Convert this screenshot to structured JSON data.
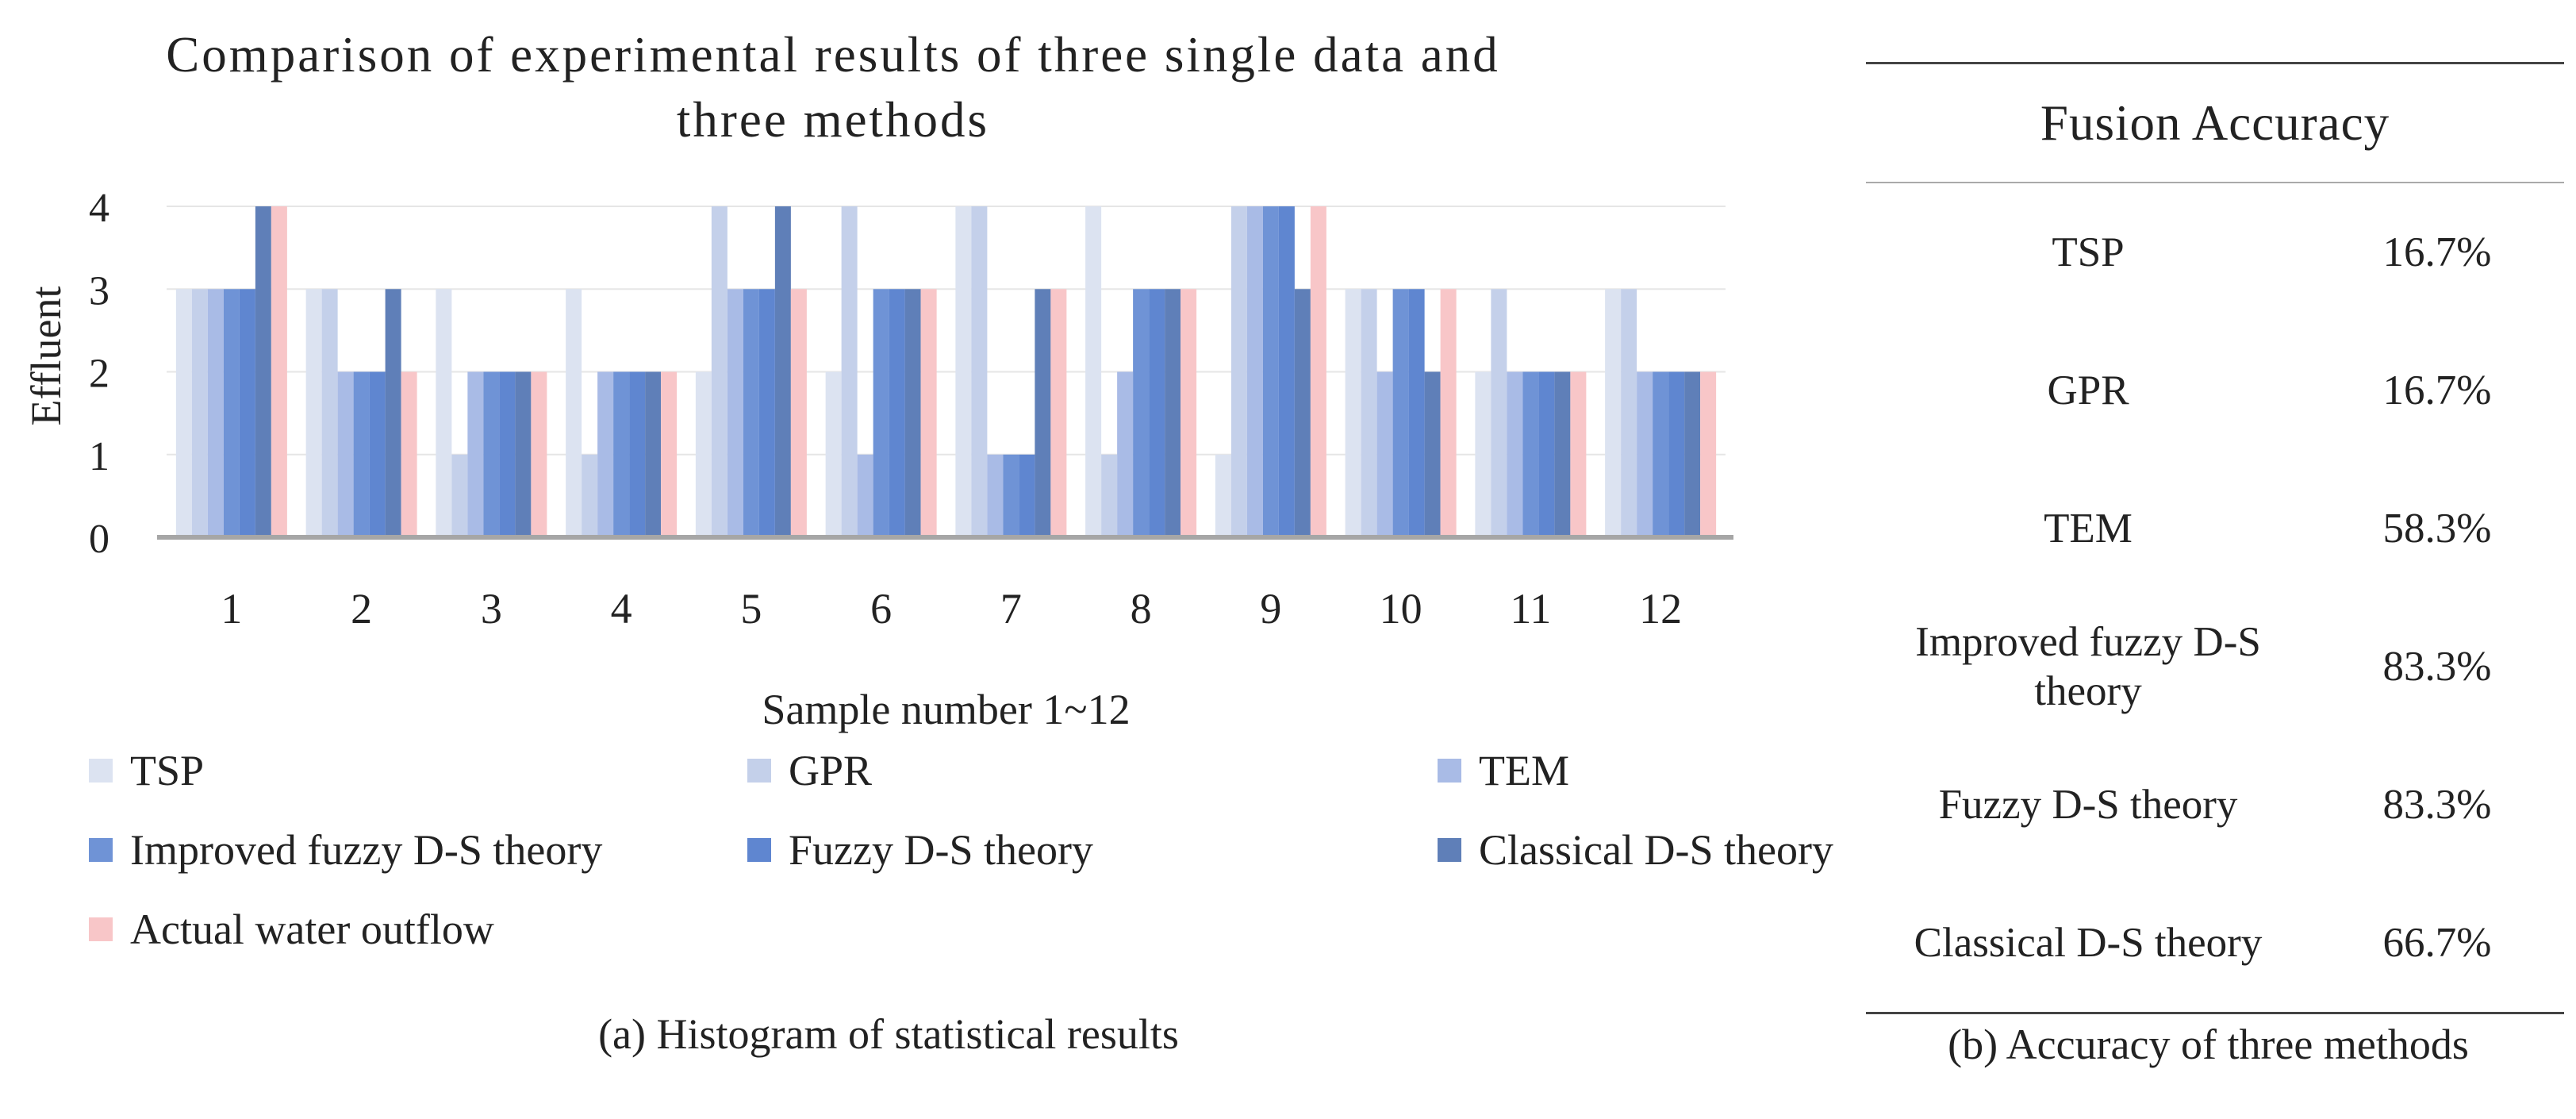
{
  "chart_data": {
    "type": "bar",
    "title": "Comparison of experimental results of three single data and three methods",
    "title_lines": [
      "Comparison of experimental results of three single data and",
      "three methods"
    ],
    "xlabel": "Sample number 1~12",
    "ylabel": "Effluent",
    "ylim": [
      0,
      4
    ],
    "yticks": [
      "0",
      "1",
      "2",
      "3",
      "4"
    ],
    "grid": true,
    "legend_position": "bottom",
    "categories": [
      "1",
      "2",
      "3",
      "4",
      "5",
      "6",
      "7",
      "8",
      "9",
      "10",
      "11",
      "12"
    ],
    "series": [
      {
        "name": "TSP",
        "color": "#DCE3F1",
        "values": [
          3,
          3,
          3,
          3,
          2,
          2,
          4,
          4,
          1,
          3,
          2,
          3
        ]
      },
      {
        "name": "GPR",
        "color": "#C4D0EA",
        "values": [
          3,
          3,
          1,
          1,
          4,
          4,
          4,
          1,
          4,
          3,
          3,
          3
        ]
      },
      {
        "name": "TEM",
        "color": "#A9BBE6",
        "values": [
          3,
          2,
          2,
          2,
          3,
          1,
          1,
          2,
          4,
          2,
          2,
          2
        ]
      },
      {
        "name": "Improved fuzzy D-S theory",
        "color": "#6F93D6",
        "values": [
          3,
          2,
          2,
          2,
          3,
          3,
          1,
          3,
          4,
          3,
          2,
          2
        ]
      },
      {
        "name": "Fuzzy D-S theory",
        "color": "#5F86D0",
        "values": [
          3,
          2,
          2,
          2,
          3,
          3,
          1,
          3,
          4,
          3,
          2,
          2
        ]
      },
      {
        "name": "Classical D-S theory",
        "color": "#5F7FB8",
        "values": [
          4,
          3,
          2,
          2,
          4,
          3,
          3,
          3,
          3,
          2,
          2,
          2
        ]
      },
      {
        "name": "Actual water outflow",
        "color": "#F8C6C8",
        "values": [
          4,
          2,
          2,
          2,
          3,
          3,
          3,
          3,
          4,
          3,
          2,
          2
        ]
      }
    ]
  },
  "captions": {
    "a": "(a) Histogram of statistical results",
    "b": "(b) Accuracy of three methods"
  },
  "accuracy_table": {
    "header": "Fusion Accuracy",
    "rows": [
      {
        "method": "TSP",
        "accuracy": "16.7%"
      },
      {
        "method": "GPR",
        "accuracy": "16.7%"
      },
      {
        "method": "TEM",
        "accuracy": "58.3%"
      },
      {
        "method": "Improved fuzzy D-S theory",
        "accuracy": "83.3%"
      },
      {
        "method": "Fuzzy D-S theory",
        "accuracy": "83.3%"
      },
      {
        "method": "Classical D-S theory",
        "accuracy": "66.7%"
      }
    ]
  }
}
